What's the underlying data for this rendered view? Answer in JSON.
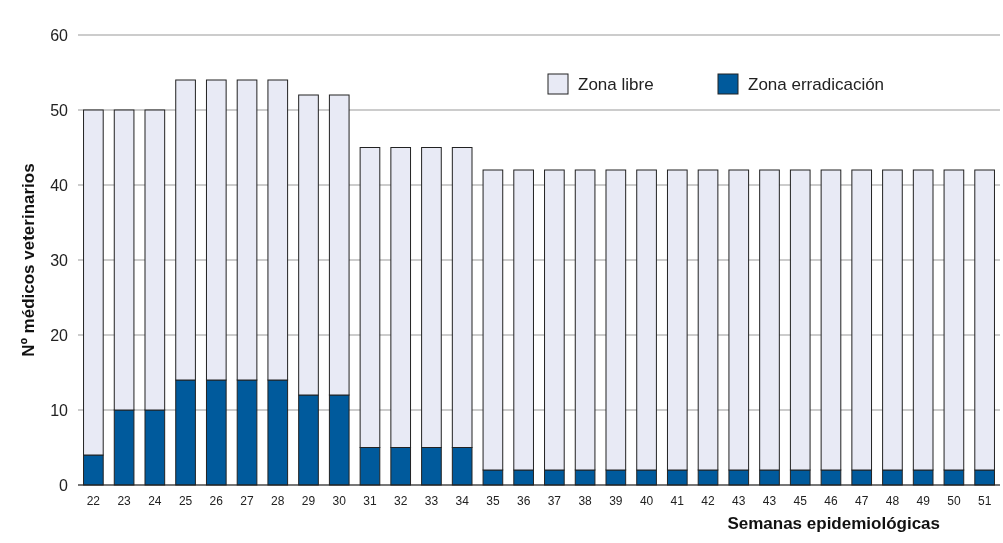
{
  "chart_data": {
    "type": "bar",
    "stacked": true,
    "xlabel": "Semanas epidemiológicas",
    "ylabel": "Nº médicos veterinarios",
    "categories": [
      "22",
      "23",
      "24",
      "25",
      "26",
      "27",
      "28",
      "29",
      "30",
      "31",
      "32",
      "33",
      "34",
      "35",
      "36",
      "37",
      "38",
      "39",
      "40",
      "41",
      "42",
      "43",
      "43",
      "45",
      "46",
      "47",
      "48",
      "49",
      "50",
      "51"
    ],
    "series": [
      {
        "name": "Zona erradicación",
        "color": "#005a9c",
        "values": [
          4,
          10,
          10,
          14,
          14,
          14,
          14,
          12,
          12,
          5,
          5,
          5,
          5,
          2,
          2,
          2,
          2,
          2,
          2,
          2,
          2,
          2,
          2,
          2,
          2,
          2,
          2,
          2,
          2,
          2
        ]
      },
      {
        "name": "Zona libre",
        "color": "#e8eaf5",
        "values": [
          46,
          40,
          40,
          40,
          40,
          40,
          40,
          40,
          40,
          40,
          40,
          40,
          40,
          40,
          40,
          40,
          40,
          40,
          40,
          40,
          40,
          40,
          40,
          40,
          40,
          40,
          40,
          40,
          40,
          40
        ]
      }
    ],
    "ylim": [
      0,
      60
    ],
    "yticks": [
      0,
      10,
      20,
      30,
      40,
      50,
      60
    ],
    "grid": "y",
    "legend": "top right"
  }
}
